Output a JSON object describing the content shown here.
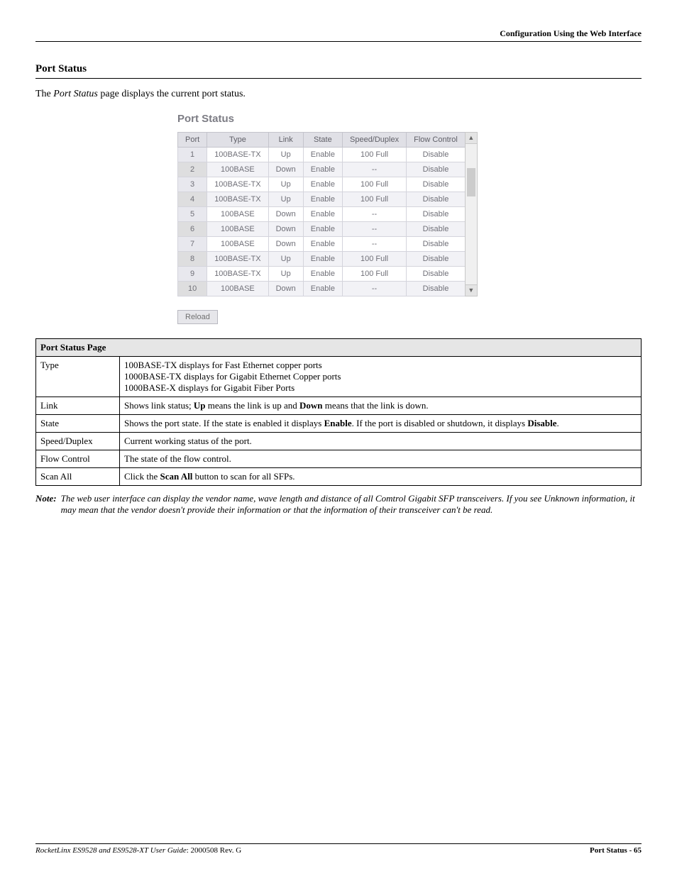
{
  "header": {
    "right": "Configuration Using the Web Interface"
  },
  "section": {
    "title": "Port Status"
  },
  "intro": {
    "prefix": "The ",
    "em": "Port Status",
    "suffix": " page displays the current port status."
  },
  "screenshot": {
    "title": "Port Status",
    "columns": [
      "Port",
      "Type",
      "Link",
      "State",
      "Speed/Duplex",
      "Flow Control"
    ],
    "rows": [
      {
        "port": "1",
        "type": "100BASE-TX",
        "link": "Up",
        "state": "Enable",
        "sd": "100 Full",
        "fc": "Disable"
      },
      {
        "port": "2",
        "type": "100BASE",
        "link": "Down",
        "state": "Enable",
        "sd": "--",
        "fc": "Disable"
      },
      {
        "port": "3",
        "type": "100BASE-TX",
        "link": "Up",
        "state": "Enable",
        "sd": "100 Full",
        "fc": "Disable"
      },
      {
        "port": "4",
        "type": "100BASE-TX",
        "link": "Up",
        "state": "Enable",
        "sd": "100 Full",
        "fc": "Disable"
      },
      {
        "port": "5",
        "type": "100BASE",
        "link": "Down",
        "state": "Enable",
        "sd": "--",
        "fc": "Disable"
      },
      {
        "port": "6",
        "type": "100BASE",
        "link": "Down",
        "state": "Enable",
        "sd": "--",
        "fc": "Disable"
      },
      {
        "port": "7",
        "type": "100BASE",
        "link": "Down",
        "state": "Enable",
        "sd": "--",
        "fc": "Disable"
      },
      {
        "port": "8",
        "type": "100BASE-TX",
        "link": "Up",
        "state": "Enable",
        "sd": "100 Full",
        "fc": "Disable"
      },
      {
        "port": "9",
        "type": "100BASE-TX",
        "link": "Up",
        "state": "Enable",
        "sd": "100 Full",
        "fc": "Disable"
      },
      {
        "port": "10",
        "type": "100BASE",
        "link": "Down",
        "state": "Enable",
        "sd": "--",
        "fc": "Disable"
      }
    ],
    "reload_label": "Reload"
  },
  "desc": {
    "header": "Port Status Page",
    "rows": {
      "type": {
        "label": "Type",
        "l1": "100BASE-TX displays for Fast Ethernet copper ports",
        "l2": "1000BASE-TX displays for Gigabit Ethernet Copper ports",
        "l3": "1000BASE-X displays for Gigabit Fiber Ports"
      },
      "link": {
        "label": "Link",
        "pre": "Shows link status; ",
        "b1": "Up",
        "mid": " means the link is up and ",
        "b2": "Down",
        "post": " means that the link is down."
      },
      "state": {
        "label": "State",
        "pre": "Shows the port state. If the state is enabled it displays ",
        "b1": "Enable",
        "mid": ". If the port is disabled or shutdown, it displays ",
        "b2": "Disable",
        "post": "."
      },
      "speed": {
        "label": "Speed/Duplex",
        "text": "Current working status of the port."
      },
      "flow": {
        "label": "Flow Control",
        "text": "The state of the flow control."
      },
      "scan": {
        "label": "Scan All",
        "pre": "Click the ",
        "b1": "Scan All",
        "post": " button to scan for all SFPs."
      }
    }
  },
  "note": {
    "label": "Note:",
    "text": "The web user interface can display the vendor name, wave length and distance of all Comtrol Gigabit SFP transceivers. If you see Unknown information, it may mean that the vendor doesn't provide their information or that the information of their transceiver can't be read."
  },
  "footer": {
    "left_em": "RocketLinx ES9528 and ES9528-XT User Guide",
    "left_rest": ": 2000508 Rev. G",
    "right": "Port Status - 65"
  }
}
